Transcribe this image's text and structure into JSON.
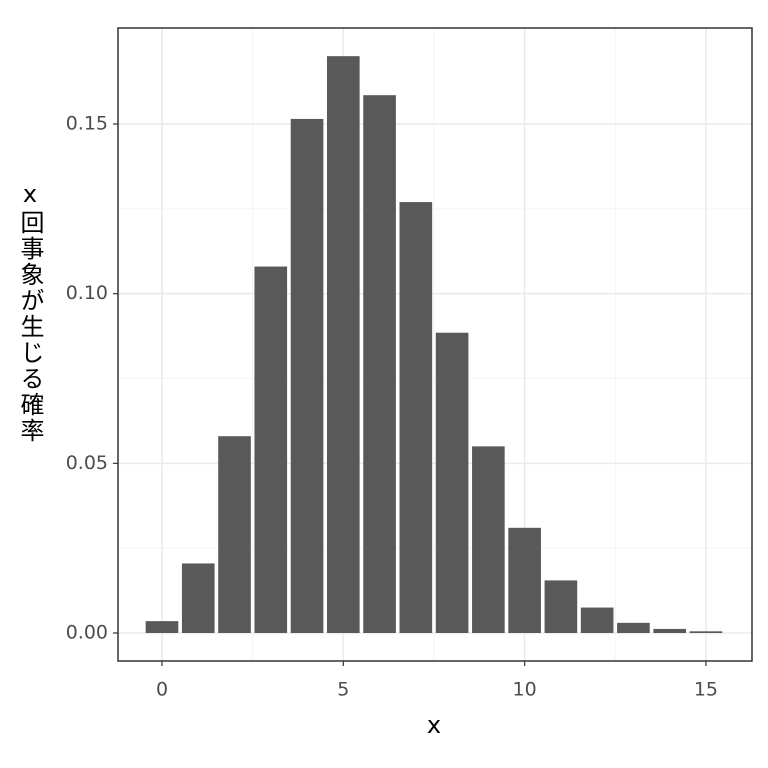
{
  "chart_data": {
    "type": "bar",
    "x": [
      0,
      1,
      2,
      3,
      4,
      5,
      6,
      7,
      8,
      9,
      10,
      11,
      12,
      13,
      14,
      15
    ],
    "values": [
      0.0035,
      0.0205,
      0.058,
      0.108,
      0.1515,
      0.17,
      0.1585,
      0.127,
      0.0885,
      0.055,
      0.031,
      0.0155,
      0.0075,
      0.003,
      0.0012,
      0.0005
    ],
    "color": "#595959",
    "xlabel": "x",
    "ylabel": "x回事象が生じる確率",
    "xlim": [
      -1.213,
      16.27
    ],
    "xticks": [
      0,
      5,
      10,
      15
    ],
    "ylim": [
      -0.00825,
      0.1783
    ],
    "yticks": [
      {
        "value": 0,
        "label": "0.00"
      },
      {
        "value": 0.05,
        "label": "0.05"
      },
      {
        "value": 0.1,
        "label": "0.10"
      },
      {
        "value": 0.15,
        "label": "0.15"
      }
    ],
    "grid": true
  }
}
